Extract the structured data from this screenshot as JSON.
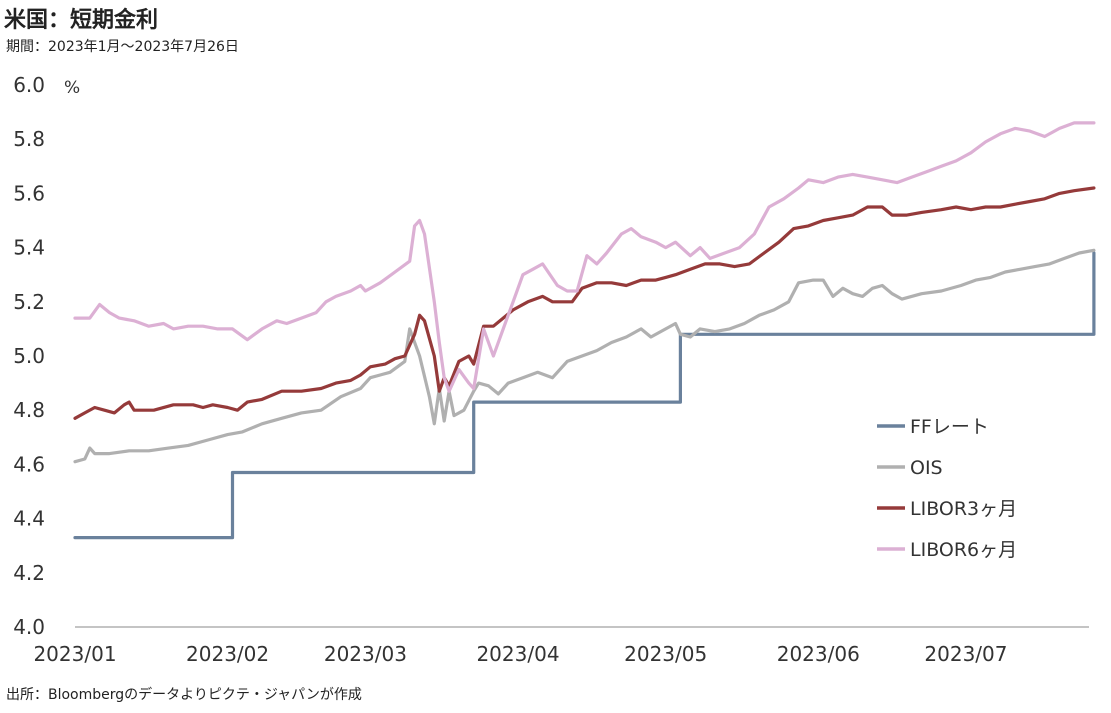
{
  "title": "米国：短期金利",
  "subtitle": "期間：2023年1月～2023年7月26日",
  "source": "出所：Bloombergのデータよりピクテ・ジャパンが作成",
  "chart_data": {
    "type": "line",
    "ylabel": "%",
    "ylim": [
      4.0,
      6.0
    ],
    "yticks": [
      "4.0",
      "4.2",
      "4.4",
      "4.6",
      "4.8",
      "5.0",
      "5.2",
      "5.4",
      "5.6",
      "5.8",
      "6.0"
    ],
    "xlim": [
      "2023-01-01",
      "2023-07-26"
    ],
    "xticks": [
      {
        "date": "2023-01-01",
        "label": "2023/01"
      },
      {
        "date": "2023-02-01",
        "label": "2023/02"
      },
      {
        "date": "2023-03-01",
        "label": "2023/03"
      },
      {
        "date": "2023-04-01",
        "label": "2023/04"
      },
      {
        "date": "2023-05-01",
        "label": "2023/05"
      },
      {
        "date": "2023-06-01",
        "label": "2023/06"
      },
      {
        "date": "2023-07-01",
        "label": "2023/07"
      }
    ],
    "legend_position": "right",
    "series": [
      {
        "name": "FFレート",
        "color": "#6a819c",
        "points": [
          [
            "2023-01-01",
            4.33
          ],
          [
            "2023-02-01",
            4.33
          ],
          [
            "2023-02-02",
            4.57
          ],
          [
            "2023-03-22",
            4.57
          ],
          [
            "2023-03-23",
            4.83
          ],
          [
            "2023-05-03",
            4.83
          ],
          [
            "2023-05-04",
            5.08
          ],
          [
            "2023-07-26",
            5.08
          ],
          [
            "2023-07-27",
            5.38
          ]
        ]
      },
      {
        "name": "OIS",
        "color": "#b0b0b0",
        "points": [
          [
            "2023-01-01",
            4.61
          ],
          [
            "2023-01-03",
            4.62
          ],
          [
            "2023-01-04",
            4.66
          ],
          [
            "2023-01-05",
            4.64
          ],
          [
            "2023-01-08",
            4.64
          ],
          [
            "2023-01-12",
            4.65
          ],
          [
            "2023-01-16",
            4.65
          ],
          [
            "2023-01-20",
            4.66
          ],
          [
            "2023-01-24",
            4.67
          ],
          [
            "2023-01-28",
            4.69
          ],
          [
            "2023-02-01",
            4.71
          ],
          [
            "2023-02-04",
            4.72
          ],
          [
            "2023-02-08",
            4.75
          ],
          [
            "2023-02-12",
            4.77
          ],
          [
            "2023-02-16",
            4.79
          ],
          [
            "2023-02-20",
            4.8
          ],
          [
            "2023-02-24",
            4.85
          ],
          [
            "2023-02-28",
            4.88
          ],
          [
            "2023-03-02",
            4.92
          ],
          [
            "2023-03-06",
            4.94
          ],
          [
            "2023-03-09",
            4.98
          ],
          [
            "2023-03-10",
            5.1
          ],
          [
            "2023-03-12",
            5.0
          ],
          [
            "2023-03-14",
            4.85
          ],
          [
            "2023-03-15",
            4.75
          ],
          [
            "2023-03-16",
            4.88
          ],
          [
            "2023-03-17",
            4.76
          ],
          [
            "2023-03-18",
            4.87
          ],
          [
            "2023-03-19",
            4.78
          ],
          [
            "2023-03-21",
            4.8
          ],
          [
            "2023-03-23",
            4.87
          ],
          [
            "2023-03-24",
            4.9
          ],
          [
            "2023-03-26",
            4.89
          ],
          [
            "2023-03-28",
            4.86
          ],
          [
            "2023-03-30",
            4.9
          ],
          [
            "2023-04-02",
            4.92
          ],
          [
            "2023-04-05",
            4.94
          ],
          [
            "2023-04-08",
            4.92
          ],
          [
            "2023-04-11",
            4.98
          ],
          [
            "2023-04-14",
            5.0
          ],
          [
            "2023-04-17",
            5.02
          ],
          [
            "2023-04-20",
            5.05
          ],
          [
            "2023-04-23",
            5.07
          ],
          [
            "2023-04-26",
            5.1
          ],
          [
            "2023-04-28",
            5.07
          ],
          [
            "2023-05-01",
            5.1
          ],
          [
            "2023-05-03",
            5.12
          ],
          [
            "2023-05-04",
            5.08
          ],
          [
            "2023-05-06",
            5.07
          ],
          [
            "2023-05-08",
            5.1
          ],
          [
            "2023-05-11",
            5.09
          ],
          [
            "2023-05-14",
            5.1
          ],
          [
            "2023-05-17",
            5.12
          ],
          [
            "2023-05-20",
            5.15
          ],
          [
            "2023-05-23",
            5.17
          ],
          [
            "2023-05-26",
            5.2
          ],
          [
            "2023-05-28",
            5.27
          ],
          [
            "2023-05-31",
            5.28
          ],
          [
            "2023-06-02",
            5.28
          ],
          [
            "2023-06-04",
            5.22
          ],
          [
            "2023-06-06",
            5.25
          ],
          [
            "2023-06-08",
            5.23
          ],
          [
            "2023-06-10",
            5.22
          ],
          [
            "2023-06-12",
            5.25
          ],
          [
            "2023-06-14",
            5.26
          ],
          [
            "2023-06-16",
            5.23
          ],
          [
            "2023-06-18",
            5.21
          ],
          [
            "2023-06-22",
            5.23
          ],
          [
            "2023-06-26",
            5.24
          ],
          [
            "2023-06-30",
            5.26
          ],
          [
            "2023-07-03",
            5.28
          ],
          [
            "2023-07-06",
            5.29
          ],
          [
            "2023-07-09",
            5.31
          ],
          [
            "2023-07-12",
            5.32
          ],
          [
            "2023-07-15",
            5.33
          ],
          [
            "2023-07-18",
            5.34
          ],
          [
            "2023-07-21",
            5.36
          ],
          [
            "2023-07-24",
            5.38
          ],
          [
            "2023-07-27",
            5.39
          ]
        ]
      },
      {
        "name": "LIBOR3ヶ月",
        "color": "#953a3a",
        "points": [
          [
            "2023-01-01",
            4.77
          ],
          [
            "2023-01-03",
            4.79
          ],
          [
            "2023-01-05",
            4.81
          ],
          [
            "2023-01-07",
            4.8
          ],
          [
            "2023-01-09",
            4.79
          ],
          [
            "2023-01-11",
            4.82
          ],
          [
            "2023-01-12",
            4.83
          ],
          [
            "2023-01-13",
            4.8
          ],
          [
            "2023-01-17",
            4.8
          ],
          [
            "2023-01-21",
            4.82
          ],
          [
            "2023-01-25",
            4.82
          ],
          [
            "2023-01-27",
            4.81
          ],
          [
            "2023-01-29",
            4.82
          ],
          [
            "2023-02-01",
            4.81
          ],
          [
            "2023-02-03",
            4.8
          ],
          [
            "2023-02-05",
            4.83
          ],
          [
            "2023-02-08",
            4.84
          ],
          [
            "2023-02-12",
            4.87
          ],
          [
            "2023-02-16",
            4.87
          ],
          [
            "2023-02-20",
            4.88
          ],
          [
            "2023-02-23",
            4.9
          ],
          [
            "2023-02-26",
            4.91
          ],
          [
            "2023-02-28",
            4.93
          ],
          [
            "2023-03-02",
            4.96
          ],
          [
            "2023-03-05",
            4.97
          ],
          [
            "2023-03-07",
            4.99
          ],
          [
            "2023-03-09",
            5.0
          ],
          [
            "2023-03-11",
            5.08
          ],
          [
            "2023-03-12",
            5.15
          ],
          [
            "2023-03-13",
            5.13
          ],
          [
            "2023-03-15",
            5.0
          ],
          [
            "2023-03-16",
            4.87
          ],
          [
            "2023-03-17",
            4.92
          ],
          [
            "2023-03-18",
            4.89
          ],
          [
            "2023-03-20",
            4.98
          ],
          [
            "2023-03-22",
            5.0
          ],
          [
            "2023-03-23",
            4.97
          ],
          [
            "2023-03-25",
            5.11
          ],
          [
            "2023-03-27",
            5.11
          ],
          [
            "2023-03-29",
            5.14
          ],
          [
            "2023-03-31",
            5.17
          ],
          [
            "2023-04-03",
            5.2
          ],
          [
            "2023-04-06",
            5.22
          ],
          [
            "2023-04-08",
            5.2
          ],
          [
            "2023-04-12",
            5.2
          ],
          [
            "2023-04-14",
            5.25
          ],
          [
            "2023-04-17",
            5.27
          ],
          [
            "2023-04-20",
            5.27
          ],
          [
            "2023-04-23",
            5.26
          ],
          [
            "2023-04-26",
            5.28
          ],
          [
            "2023-04-29",
            5.28
          ],
          [
            "2023-05-01",
            5.29
          ],
          [
            "2023-05-03",
            5.3
          ],
          [
            "2023-05-06",
            5.32
          ],
          [
            "2023-05-09",
            5.34
          ],
          [
            "2023-05-12",
            5.34
          ],
          [
            "2023-05-15",
            5.33
          ],
          [
            "2023-05-18",
            5.34
          ],
          [
            "2023-05-21",
            5.38
          ],
          [
            "2023-05-24",
            5.42
          ],
          [
            "2023-05-27",
            5.47
          ],
          [
            "2023-05-30",
            5.48
          ],
          [
            "2023-06-02",
            5.5
          ],
          [
            "2023-06-05",
            5.51
          ],
          [
            "2023-06-08",
            5.52
          ],
          [
            "2023-06-11",
            5.55
          ],
          [
            "2023-06-14",
            5.55
          ],
          [
            "2023-06-16",
            5.52
          ],
          [
            "2023-06-19",
            5.52
          ],
          [
            "2023-06-22",
            5.53
          ],
          [
            "2023-06-26",
            5.54
          ],
          [
            "2023-06-29",
            5.55
          ],
          [
            "2023-07-02",
            5.54
          ],
          [
            "2023-07-05",
            5.55
          ],
          [
            "2023-07-08",
            5.55
          ],
          [
            "2023-07-11",
            5.56
          ],
          [
            "2023-07-14",
            5.57
          ],
          [
            "2023-07-17",
            5.58
          ],
          [
            "2023-07-20",
            5.6
          ],
          [
            "2023-07-23",
            5.61
          ],
          [
            "2023-07-27",
            5.62
          ]
        ]
      },
      {
        "name": "LIBOR6ヶ月",
        "color": "#dcb0d4",
        "points": [
          [
            "2023-01-01",
            5.14
          ],
          [
            "2023-01-04",
            5.14
          ],
          [
            "2023-01-06",
            5.19
          ],
          [
            "2023-01-08",
            5.16
          ],
          [
            "2023-01-10",
            5.14
          ],
          [
            "2023-01-13",
            5.13
          ],
          [
            "2023-01-16",
            5.11
          ],
          [
            "2023-01-19",
            5.12
          ],
          [
            "2023-01-21",
            5.1
          ],
          [
            "2023-01-24",
            5.11
          ],
          [
            "2023-01-27",
            5.11
          ],
          [
            "2023-01-30",
            5.1
          ],
          [
            "2023-02-02",
            5.1
          ],
          [
            "2023-02-05",
            5.06
          ],
          [
            "2023-02-08",
            5.1
          ],
          [
            "2023-02-11",
            5.13
          ],
          [
            "2023-02-13",
            5.12
          ],
          [
            "2023-02-16",
            5.14
          ],
          [
            "2023-02-19",
            5.16
          ],
          [
            "2023-02-21",
            5.2
          ],
          [
            "2023-02-23",
            5.22
          ],
          [
            "2023-02-26",
            5.24
          ],
          [
            "2023-02-28",
            5.26
          ],
          [
            "2023-03-01",
            5.24
          ],
          [
            "2023-03-04",
            5.27
          ],
          [
            "2023-03-07",
            5.31
          ],
          [
            "2023-03-10",
            5.35
          ],
          [
            "2023-03-11",
            5.48
          ],
          [
            "2023-03-12",
            5.5
          ],
          [
            "2023-03-13",
            5.45
          ],
          [
            "2023-03-15",
            5.2
          ],
          [
            "2023-03-16",
            5.05
          ],
          [
            "2023-03-17",
            4.92
          ],
          [
            "2023-03-18",
            4.87
          ],
          [
            "2023-03-20",
            4.95
          ],
          [
            "2023-03-22",
            4.9
          ],
          [
            "2023-03-23",
            4.88
          ],
          [
            "2023-03-25",
            5.1
          ],
          [
            "2023-03-27",
            5.0
          ],
          [
            "2023-03-29",
            5.1
          ],
          [
            "2023-03-31",
            5.2
          ],
          [
            "2023-04-02",
            5.3
          ],
          [
            "2023-04-04",
            5.32
          ],
          [
            "2023-04-06",
            5.34
          ],
          [
            "2023-04-09",
            5.26
          ],
          [
            "2023-04-11",
            5.24
          ],
          [
            "2023-04-13",
            5.24
          ],
          [
            "2023-04-15",
            5.37
          ],
          [
            "2023-04-17",
            5.34
          ],
          [
            "2023-04-19",
            5.38
          ],
          [
            "2023-04-22",
            5.45
          ],
          [
            "2023-04-24",
            5.47
          ],
          [
            "2023-04-26",
            5.44
          ],
          [
            "2023-04-29",
            5.42
          ],
          [
            "2023-05-01",
            5.4
          ],
          [
            "2023-05-03",
            5.42
          ],
          [
            "2023-05-06",
            5.37
          ],
          [
            "2023-05-08",
            5.4
          ],
          [
            "2023-05-10",
            5.36
          ],
          [
            "2023-05-13",
            5.38
          ],
          [
            "2023-05-16",
            5.4
          ],
          [
            "2023-05-19",
            5.45
          ],
          [
            "2023-05-22",
            5.55
          ],
          [
            "2023-05-25",
            5.58
          ],
          [
            "2023-05-28",
            5.62
          ],
          [
            "2023-05-30",
            5.65
          ],
          [
            "2023-06-02",
            5.64
          ],
          [
            "2023-06-05",
            5.66
          ],
          [
            "2023-06-08",
            5.67
          ],
          [
            "2023-06-11",
            5.66
          ],
          [
            "2023-06-14",
            5.65
          ],
          [
            "2023-06-17",
            5.64
          ],
          [
            "2023-06-20",
            5.66
          ],
          [
            "2023-06-23",
            5.68
          ],
          [
            "2023-06-26",
            5.7
          ],
          [
            "2023-06-29",
            5.72
          ],
          [
            "2023-07-02",
            5.75
          ],
          [
            "2023-07-05",
            5.79
          ],
          [
            "2023-07-08",
            5.82
          ],
          [
            "2023-07-11",
            5.84
          ],
          [
            "2023-07-14",
            5.83
          ],
          [
            "2023-07-17",
            5.81
          ],
          [
            "2023-07-20",
            5.84
          ],
          [
            "2023-07-23",
            5.86
          ],
          [
            "2023-07-27",
            5.86
          ]
        ]
      }
    ]
  }
}
